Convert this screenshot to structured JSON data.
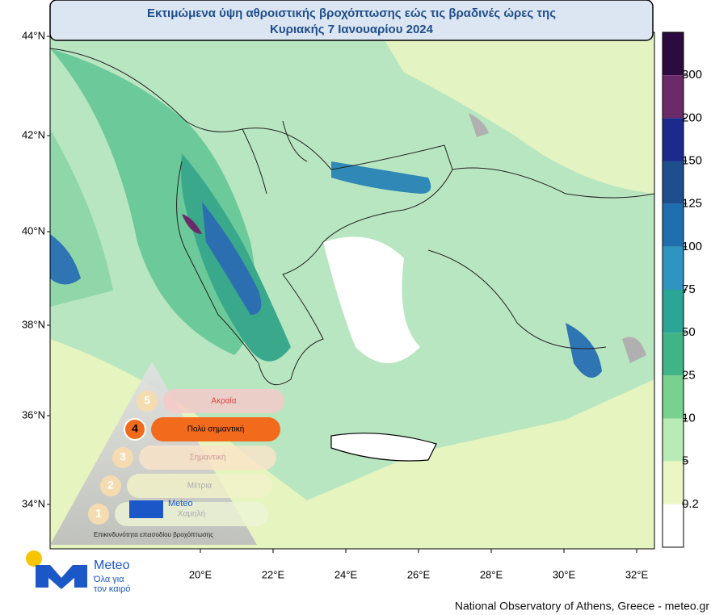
{
  "title": {
    "line1": "Εκτιμώμενα ύψη αθροιστικής βροχόπτωσης εώς τις βραδινές ώρες της",
    "line2": "Κυριακής 7 Ιανουαρίου 2024"
  },
  "map": {
    "lat_labels": [
      "44°N",
      "42°N",
      "40°N",
      "38°N",
      "36°N",
      "34°N"
    ],
    "lon_labels": [
      "20°E",
      "22°E",
      "24°E",
      "26°E",
      "28°E",
      "30°E",
      "32°E"
    ]
  },
  "colorbar": {
    "levels": [
      300,
      200,
      150,
      125,
      100,
      75,
      50,
      25,
      10,
      5,
      0.2
    ],
    "colors": [
      "#2c0b3e",
      "#6b2a68",
      "#1b2a8c",
      "#1d4e8e",
      "#1f6fae",
      "#2f94c0",
      "#2aa596",
      "#40b487",
      "#79d190",
      "#b9ebb6",
      "#ecf6c4",
      "#ffffff"
    ]
  },
  "risk_scale": {
    "levels": [
      {
        "number": "5",
        "label": "Ακραία"
      },
      {
        "number": "4",
        "label": "Πολύ σημαντική"
      },
      {
        "number": "3",
        "label": "Σημαντική"
      },
      {
        "number": "2",
        "label": "Μέτρια"
      },
      {
        "number": "1",
        "label": "Χαμηλή"
      }
    ],
    "brand": "Meteo",
    "caption": "Επικινδυνότητα επεισοδίου βροχόπτωσης"
  },
  "logo": {
    "name": "Meteo",
    "tagline_1": "Όλα για",
    "tagline_2": "τον καιρό"
  },
  "footer": "National Observatory of Athens, Greece - meteo.gr"
}
